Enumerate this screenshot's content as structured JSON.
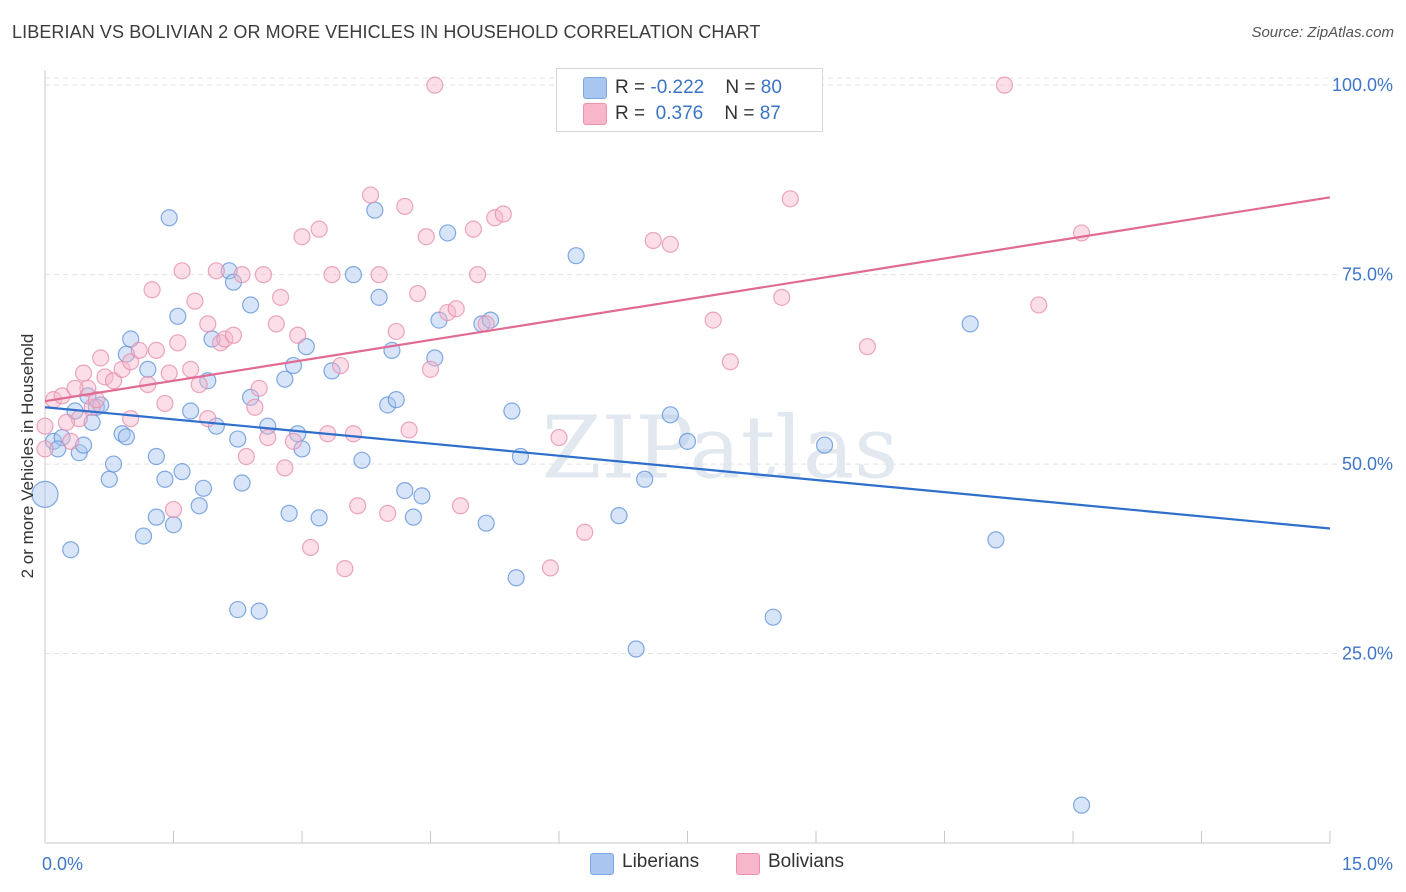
{
  "title": "LIBERIAN VS BOLIVIAN 2 OR MORE VEHICLES IN HOUSEHOLD CORRELATION CHART",
  "source": "Source: ZipAtlas.com",
  "watermark": "ZIPatlas",
  "legend": {
    "rows": [
      {
        "r_label": "R = ",
        "r_value": "-0.222",
        "n_label": "N = ",
        "n_value": "80",
        "color": "#a9c6f0"
      },
      {
        "r_label": "R = ",
        "r_value": " 0.376",
        "n_label": "N = ",
        "n_value": "87",
        "color": "#f7b6c9"
      }
    ]
  },
  "bottom_legend": [
    {
      "label": "Liberians",
      "color": "#a9c6f0"
    },
    {
      "label": "Bolivians",
      "color": "#f7b6c9"
    }
  ],
  "chart_data": {
    "type": "scatter",
    "title": "LIBERIAN VS BOLIVIAN 2 OR MORE VEHICLES IN HOUSEHOLD CORRELATION CHART",
    "xlabel": "",
    "ylabel": "2 or more Vehicles in Household",
    "xlim": [
      0,
      15
    ],
    "ylim": [
      0,
      102
    ],
    "x_tick_labels": [
      "0.0%",
      "15.0%"
    ],
    "y_ticks": [
      25,
      50,
      75,
      100
    ],
    "y_tick_labels": [
      "25.0%",
      "50.0%",
      "75.0%",
      "100.0%"
    ],
    "grid": true,
    "legend_position": "top-center",
    "series": [
      {
        "name": "Liberians",
        "color": "#5b8fd9",
        "fill": "#a9c6f0",
        "r": -0.222,
        "n": 80,
        "trend": {
          "x": [
            0,
            15
          ],
          "y": [
            57.5,
            41.5
          ]
        },
        "points": [
          [
            0.0,
            46.0
          ],
          [
            0.1,
            53.0
          ],
          [
            0.2,
            53.5
          ],
          [
            0.3,
            38.7
          ],
          [
            0.4,
            51.5
          ],
          [
            0.35,
            57.0
          ],
          [
            0.5,
            59.0
          ],
          [
            0.6,
            57.5
          ],
          [
            0.65,
            57.8
          ],
          [
            0.75,
            48.0
          ],
          [
            0.8,
            50.0
          ],
          [
            0.9,
            54.0
          ],
          [
            0.95,
            64.5
          ],
          [
            0.95,
            53.6
          ],
          [
            1.15,
            40.5
          ],
          [
            1.3,
            43.0
          ],
          [
            1.3,
            51.0
          ],
          [
            1.4,
            48.0
          ],
          [
            1.45,
            82.5
          ],
          [
            1.5,
            42.0
          ],
          [
            1.55,
            69.5
          ],
          [
            1.6,
            49.0
          ],
          [
            1.7,
            57.0
          ],
          [
            1.8,
            44.5
          ],
          [
            1.85,
            46.8
          ],
          [
            1.9,
            61.0
          ],
          [
            1.95,
            66.5
          ],
          [
            2.0,
            55.0
          ],
          [
            2.15,
            75.5
          ],
          [
            2.25,
            53.3
          ],
          [
            2.3,
            47.5
          ],
          [
            2.4,
            58.8
          ],
          [
            2.4,
            71.0
          ],
          [
            2.25,
            30.8
          ],
          [
            2.5,
            30.6
          ],
          [
            2.6,
            55.0
          ],
          [
            2.8,
            61.2
          ],
          [
            2.85,
            43.5
          ],
          [
            2.95,
            54.0
          ],
          [
            2.9,
            63.0
          ],
          [
            3.05,
            65.5
          ],
          [
            3.2,
            42.9
          ],
          [
            3.35,
            62.3
          ],
          [
            3.6,
            75.0
          ],
          [
            3.7,
            50.5
          ],
          [
            3.85,
            83.5
          ],
          [
            3.9,
            72.0
          ],
          [
            4.0,
            57.8
          ],
          [
            4.05,
            65.0
          ],
          [
            4.2,
            46.5
          ],
          [
            4.3,
            43.0
          ],
          [
            4.4,
            45.8
          ],
          [
            4.55,
            64.0
          ],
          [
            4.6,
            69.0
          ],
          [
            4.7,
            80.5
          ],
          [
            5.1,
            68.5
          ],
          [
            5.15,
            42.2
          ],
          [
            5.45,
            57.0
          ],
          [
            5.5,
            35.0
          ],
          [
            5.55,
            51.0
          ],
          [
            6.2,
            77.5
          ],
          [
            6.7,
            43.2
          ],
          [
            6.9,
            25.6
          ],
          [
            7.3,
            56.5
          ],
          [
            7.5,
            53.0
          ],
          [
            8.5,
            29.8
          ],
          [
            9.1,
            52.5
          ],
          [
            10.8,
            68.5
          ],
          [
            11.1,
            40.0
          ],
          [
            12.1,
            5.0
          ],
          [
            0.15,
            52.0
          ],
          [
            0.55,
            55.5
          ],
          [
            1.0,
            66.5
          ],
          [
            2.2,
            74.0
          ],
          [
            3.0,
            52.0
          ],
          [
            4.1,
            58.5
          ],
          [
            5.2,
            69.0
          ],
          [
            7.0,
            48.0
          ],
          [
            1.2,
            62.5
          ],
          [
            0.45,
            52.5
          ]
        ]
      },
      {
        "name": "Bolivians",
        "color": "#e58bab",
        "fill": "#f7b6c9",
        "r": 0.376,
        "n": 87,
        "trend": {
          "x": [
            0,
            15
          ],
          "y": [
            58.3,
            85.2
          ]
        },
        "points": [
          [
            0.0,
            55.0
          ],
          [
            0.0,
            52.0
          ],
          [
            0.1,
            58.5
          ],
          [
            0.2,
            59.0
          ],
          [
            0.3,
            53.0
          ],
          [
            0.4,
            56.0
          ],
          [
            0.45,
            62.0
          ],
          [
            0.5,
            60.0
          ],
          [
            0.55,
            57.5
          ],
          [
            0.65,
            64.0
          ],
          [
            0.7,
            61.5
          ],
          [
            0.8,
            61.0
          ],
          [
            0.9,
            62.5
          ],
          [
            1.0,
            63.5
          ],
          [
            1.1,
            65.0
          ],
          [
            1.2,
            60.5
          ],
          [
            1.25,
            73.0
          ],
          [
            1.3,
            65.0
          ],
          [
            1.4,
            58.0
          ],
          [
            1.45,
            62.0
          ],
          [
            1.55,
            66.0
          ],
          [
            1.6,
            75.5
          ],
          [
            1.7,
            62.5
          ],
          [
            1.75,
            71.5
          ],
          [
            1.8,
            60.5
          ],
          [
            1.9,
            56.0
          ],
          [
            2.0,
            75.5
          ],
          [
            2.05,
            66.0
          ],
          [
            2.1,
            66.5
          ],
          [
            2.2,
            67.0
          ],
          [
            2.3,
            75.0
          ],
          [
            2.35,
            51.0
          ],
          [
            2.45,
            57.5
          ],
          [
            2.55,
            75.0
          ],
          [
            2.6,
            53.5
          ],
          [
            2.7,
            68.5
          ],
          [
            2.75,
            72.0
          ],
          [
            2.8,
            49.5
          ],
          [
            2.9,
            53.0
          ],
          [
            3.0,
            80.0
          ],
          [
            3.1,
            39.0
          ],
          [
            3.2,
            81.0
          ],
          [
            3.35,
            75.0
          ],
          [
            3.45,
            63.0
          ],
          [
            3.5,
            36.2
          ],
          [
            3.6,
            54.0
          ],
          [
            3.65,
            44.5
          ],
          [
            3.8,
            85.5
          ],
          [
            3.9,
            75.0
          ],
          [
            4.0,
            43.5
          ],
          [
            4.1,
            67.5
          ],
          [
            4.2,
            84.0
          ],
          [
            4.25,
            54.5
          ],
          [
            4.35,
            72.5
          ],
          [
            4.45,
            80.0
          ],
          [
            4.5,
            62.5
          ],
          [
            4.55,
            100.0
          ],
          [
            4.7,
            70.0
          ],
          [
            4.85,
            44.5
          ],
          [
            5.0,
            81.0
          ],
          [
            5.05,
            75.0
          ],
          [
            5.15,
            68.5
          ],
          [
            5.25,
            82.5
          ],
          [
            5.35,
            83.0
          ],
          [
            5.9,
            36.3
          ],
          [
            6.0,
            53.5
          ],
          [
            6.3,
            41.0
          ],
          [
            7.1,
            79.5
          ],
          [
            7.3,
            79.0
          ],
          [
            7.8,
            69.0
          ],
          [
            8.0,
            63.5
          ],
          [
            8.6,
            72.0
          ],
          [
            8.7,
            85.0
          ],
          [
            9.6,
            65.5
          ],
          [
            11.2,
            100.0
          ],
          [
            11.6,
            71.0
          ],
          [
            12.1,
            80.5
          ],
          [
            0.25,
            55.5
          ],
          [
            0.6,
            58.5
          ],
          [
            1.0,
            56.0
          ],
          [
            1.5,
            44.0
          ],
          [
            2.5,
            60.0
          ],
          [
            3.3,
            54.0
          ],
          [
            4.8,
            70.5
          ],
          [
            0.35,
            60.0
          ],
          [
            1.9,
            68.5
          ],
          [
            2.95,
            67.0
          ]
        ]
      }
    ]
  }
}
